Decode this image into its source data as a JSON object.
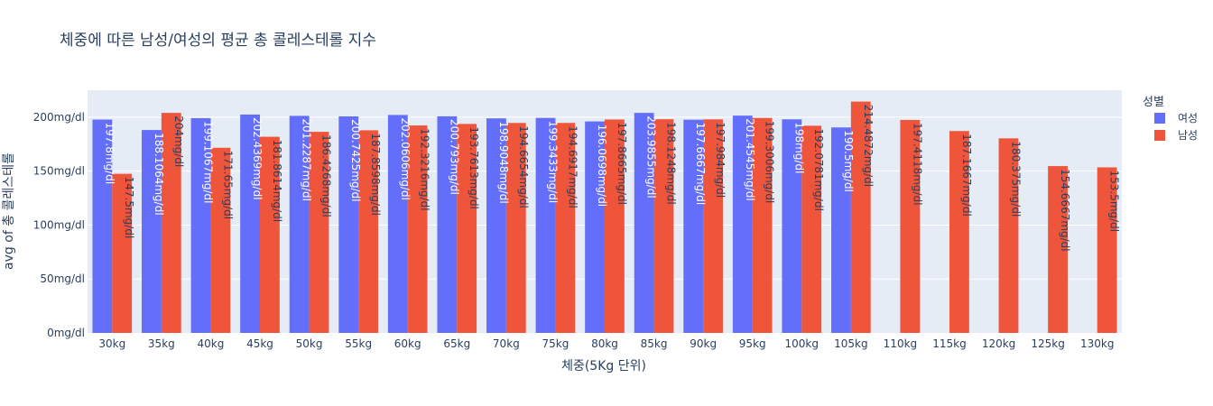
{
  "chart_data": {
    "type": "bar",
    "title": "체중에 따른 남성/여성의 평균 총 콜레스테롤 지수",
    "xlabel": "체중(5Kg 단위)",
    "ylabel": "avg of 총 콜레스테롤",
    "categories": [
      "30kg",
      "35kg",
      "40kg",
      "45kg",
      "50kg",
      "55kg",
      "60kg",
      "65kg",
      "70kg",
      "75kg",
      "80kg",
      "85kg",
      "90kg",
      "95kg",
      "100kg",
      "105kg",
      "110kg",
      "115kg",
      "120kg",
      "125kg",
      "130kg"
    ],
    "ylim": [
      0,
      225
    ],
    "yticks": [
      0,
      50,
      100,
      150,
      200
    ],
    "ytick_labels": [
      "0mg/dl",
      "50mg/dl",
      "100mg/dl",
      "150mg/dl",
      "200mg/dl"
    ],
    "grid": true,
    "legend_title": "성별",
    "legend_position": "top-right",
    "series": [
      {
        "name": "여성",
        "color": "#636efa",
        "label_color": "#ffffff",
        "values": [
          197.8,
          188.1064,
          199.1067,
          202.4369,
          201.2287,
          200.7425,
          202.0606,
          200.793,
          198.9048,
          199.3433,
          196.0698,
          203.9855,
          197.6667,
          201.4545,
          198,
          190.5,
          null,
          null,
          null,
          null,
          null
        ],
        "labels": [
          "197.8mg/dl",
          "188.1064mg/dl",
          "199.1067mg/dl",
          "202.4369mg/dl",
          "201.2287mg/dl",
          "200.7425mg/dl",
          "202.0606mg/dl",
          "200.793mg/dl",
          "198.9048mg/dl",
          "199.3433mg/dl",
          "196.0698mg/dl",
          "203.9855mg/dl",
          "197.6667mg/dl",
          "201.4545mg/dl",
          "198mg/dl",
          "190.5mg/dl",
          "",
          "",
          "",
          "",
          ""
        ]
      },
      {
        "name": "남성",
        "color": "#ef553b",
        "label_color": "#2a3f5f",
        "values": [
          147.5,
          204,
          171.65,
          181.8614,
          186.4268,
          187.8598,
          192.3216,
          193.7613,
          194.6654,
          194.6917,
          197.8665,
          198.1248,
          197.984,
          199.3006,
          192.0781,
          214.4872,
          197.4118,
          187.1667,
          180.375,
          154.6667,
          153.5
        ],
        "labels": [
          "147.5mg/dl",
          "204mg/dl",
          "171.65mg/dl",
          "181.8614mg/dl",
          "186.4268mg/dl",
          "187.8598mg/dl",
          "192.3216mg/dl",
          "193.7613mg/dl",
          "194.6654mg/dl",
          "194.6917mg/dl",
          "197.8665mg/dl",
          "198.1248mg/dl",
          "197.984mg/dl",
          "199.3006mg/dl",
          "192.0781mg/dl",
          "214.4872mg/dl",
          "197.4118mg/dl",
          "187.1667mg/dl",
          "180.375mg/dl",
          "154.6667mg/dl",
          "153.5mg/dl"
        ]
      }
    ]
  },
  "colors": {
    "plot_background": "#e5ecf6",
    "gridline": "#ffffff",
    "text": "#2a3f5f"
  }
}
